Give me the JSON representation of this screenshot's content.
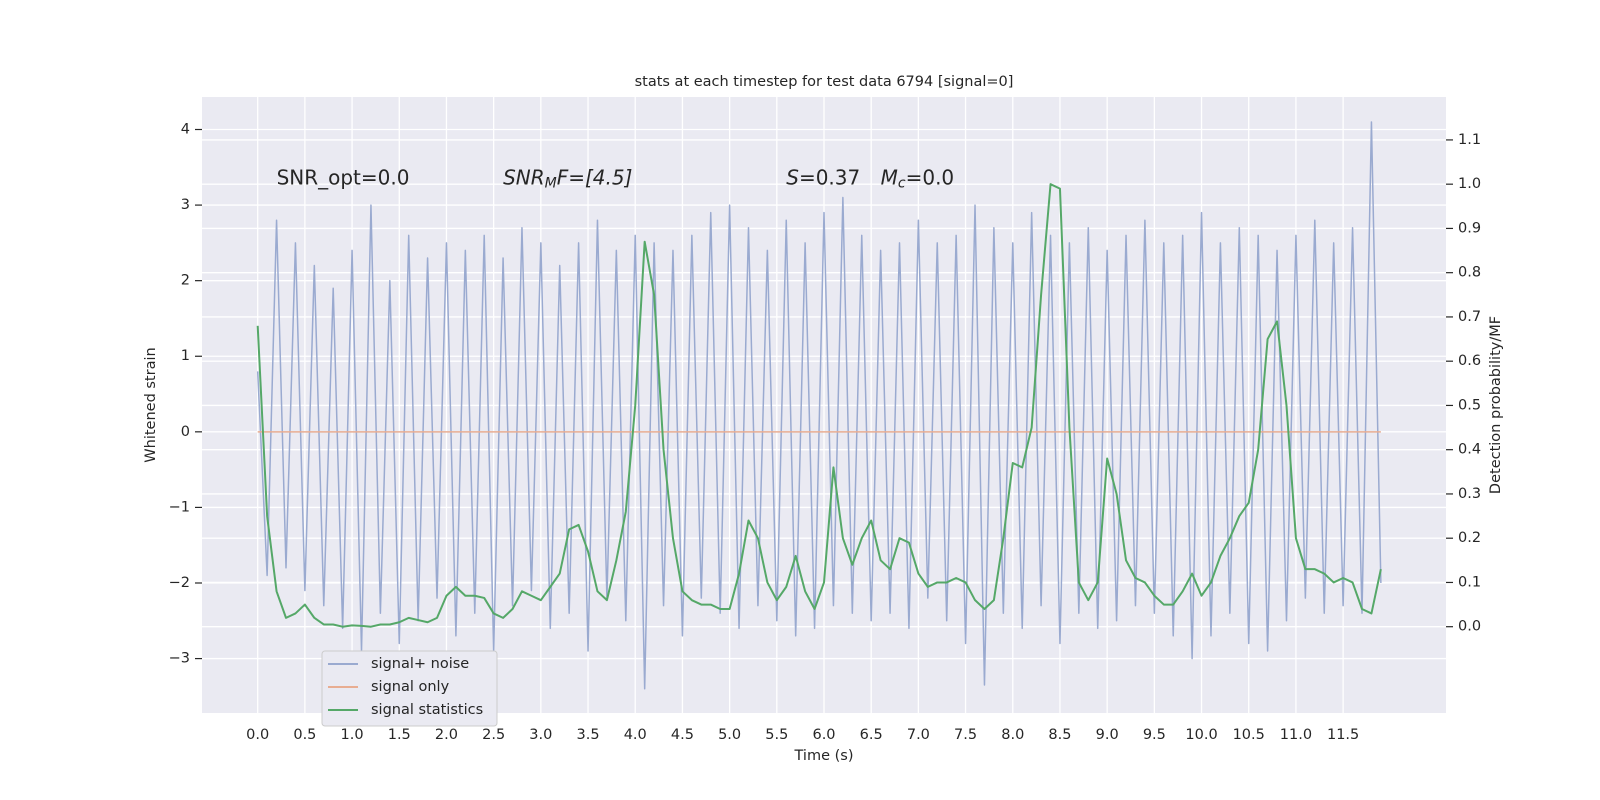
{
  "chart_data": {
    "type": "line",
    "title": "stats at each timestep for test data 6794 [signal=0]",
    "xlabel": "Time (s)",
    "ylabel": "Whitened strain",
    "y2label": "Detection probability/MF",
    "annotations": [
      {
        "x": 0.2,
        "y": 3.35,
        "parts": [
          "SNR_opt=0.0"
        ]
      },
      {
        "x": 2.6,
        "y": 3.35,
        "parts": [
          "SNR",
          "M",
          "F=[4.5]"
        ]
      },
      {
        "x": 5.6,
        "y": 3.35,
        "parts": [
          "S",
          "=0.37"
        ]
      },
      {
        "x": 6.6,
        "y": 3.35,
        "parts": [
          "M",
          "c",
          "=0.0"
        ]
      }
    ],
    "x": [
      0.0,
      0.1,
      0.2,
      0.3,
      0.4,
      0.5,
      0.6,
      0.7,
      0.8,
      0.9,
      1.0,
      1.1,
      1.2,
      1.3,
      1.4,
      1.5,
      1.6,
      1.7,
      1.8,
      1.9,
      2.0,
      2.1,
      2.2,
      2.3,
      2.4,
      2.5,
      2.6,
      2.7,
      2.8,
      2.9,
      3.0,
      3.1,
      3.2,
      3.3,
      3.4,
      3.5,
      3.6,
      3.7,
      3.8,
      3.9,
      4.0,
      4.1,
      4.2,
      4.3,
      4.4,
      4.5,
      4.6,
      4.7,
      4.8,
      4.9,
      5.0,
      5.1,
      5.2,
      5.3,
      5.4,
      5.5,
      5.6,
      5.7,
      5.8,
      5.9,
      6.0,
      6.1,
      6.2,
      6.3,
      6.4,
      6.5,
      6.6,
      6.7,
      6.8,
      6.9,
      7.0,
      7.1,
      7.2,
      7.3,
      7.4,
      7.5,
      7.6,
      7.7,
      7.8,
      7.9,
      8.0,
      8.1,
      8.2,
      8.3,
      8.4,
      8.5,
      8.6,
      8.7,
      8.8,
      8.9,
      9.0,
      9.1,
      9.2,
      9.3,
      9.4,
      9.5,
      9.6,
      9.7,
      9.8,
      9.9,
      10.0,
      10.1,
      10.2,
      10.3,
      10.4,
      10.5,
      10.6,
      10.7,
      10.8,
      10.9,
      11.0,
      11.1,
      11.2,
      11.3,
      11.4,
      11.5,
      11.6,
      11.7,
      11.8,
      11.9
    ],
    "series": [
      {
        "name": "signal+ noise",
        "color": "#9aaad0",
        "values": [
          0.8,
          -1.9,
          2.8,
          -1.8,
          2.5,
          -2.1,
          2.2,
          -2.3,
          1.9,
          -2.6,
          2.4,
          -2.9,
          3.0,
          -2.4,
          2.0,
          -2.8,
          2.6,
          -2.5,
          2.3,
          -2.2,
          2.5,
          -2.7,
          2.4,
          -2.4,
          2.6,
          -2.9,
          2.3,
          -2.3,
          2.7,
          -2.1,
          2.5,
          -2.6,
          2.2,
          -2.4,
          2.5,
          -2.9,
          2.8,
          -2.2,
          2.4,
          -2.5,
          2.6,
          -3.4,
          2.5,
          -2.3,
          2.4,
          -2.7,
          2.6,
          -2.2,
          2.9,
          -2.4,
          3.0,
          -2.6,
          2.7,
          -2.3,
          2.4,
          -2.5,
          2.8,
          -2.7,
          2.5,
          -2.6,
          2.9,
          -2.3,
          3.1,
          -2.4,
          2.6,
          -2.5,
          2.4,
          -2.4,
          2.5,
          -2.6,
          2.8,
          -2.2,
          2.5,
          -2.5,
          2.6,
          -2.8,
          3.0,
          -3.35,
          2.7,
          -2.4,
          2.5,
          -2.6,
          2.9,
          -2.3,
          2.6,
          -2.8,
          2.5,
          -2.4,
          2.7,
          -2.6,
          2.4,
          -2.5,
          2.6,
          -2.3,
          2.8,
          -2.4,
          2.5,
          -2.7,
          2.6,
          -3.0,
          2.9,
          -2.7,
          2.5,
          -2.4,
          2.7,
          -2.8,
          2.6,
          -2.9,
          2.4,
          -2.5,
          2.6,
          -2.2,
          2.8,
          -2.4,
          2.5,
          -2.3,
          2.7,
          -2.4,
          4.1,
          -2.0
        ]
      },
      {
        "name": "signal only",
        "color": "#e8ad92",
        "values": [
          0,
          0,
          0,
          0,
          0,
          0,
          0,
          0,
          0,
          0,
          0,
          0,
          0,
          0,
          0,
          0,
          0,
          0,
          0,
          0,
          0,
          0,
          0,
          0,
          0,
          0,
          0,
          0,
          0,
          0,
          0,
          0,
          0,
          0,
          0,
          0,
          0,
          0,
          0,
          0,
          0,
          0,
          0,
          0,
          0,
          0,
          0,
          0,
          0,
          0,
          0,
          0,
          0,
          0,
          0,
          0,
          0,
          0,
          0,
          0,
          0,
          0,
          0,
          0,
          0,
          0,
          0,
          0,
          0,
          0,
          0,
          0,
          0,
          0,
          0,
          0,
          0,
          0,
          0,
          0,
          0,
          0,
          0,
          0,
          0,
          0,
          0,
          0,
          0,
          0,
          0,
          0,
          0,
          0,
          0,
          0,
          0,
          0,
          0,
          0,
          0,
          0,
          0,
          0,
          0,
          0,
          0,
          0,
          0,
          0,
          0,
          0,
          0,
          0,
          0,
          0,
          0,
          0,
          0,
          0
        ]
      },
      {
        "name": "signal statistics",
        "color": "#55a868",
        "axis": "y2",
        "values": [
          0.68,
          0.25,
          0.08,
          0.02,
          0.03,
          0.05,
          0.02,
          0.005,
          0.005,
          0.0,
          0.003,
          0.002,
          0.0,
          0.005,
          0.005,
          0.01,
          0.02,
          0.015,
          0.01,
          0.02,
          0.07,
          0.09,
          0.07,
          0.07,
          0.065,
          0.03,
          0.02,
          0.04,
          0.08,
          0.07,
          0.06,
          0.09,
          0.12,
          0.22,
          0.23,
          0.17,
          0.08,
          0.06,
          0.15,
          0.26,
          0.5,
          0.87,
          0.75,
          0.4,
          0.2,
          0.08,
          0.06,
          0.05,
          0.05,
          0.04,
          0.04,
          0.12,
          0.24,
          0.2,
          0.1,
          0.06,
          0.09,
          0.16,
          0.08,
          0.04,
          0.1,
          0.36,
          0.2,
          0.14,
          0.2,
          0.24,
          0.15,
          0.13,
          0.2,
          0.19,
          0.12,
          0.09,
          0.1,
          0.1,
          0.11,
          0.1,
          0.06,
          0.04,
          0.06,
          0.2,
          0.37,
          0.36,
          0.45,
          0.75,
          1.0,
          0.99,
          0.45,
          0.1,
          0.06,
          0.1,
          0.38,
          0.3,
          0.15,
          0.11,
          0.1,
          0.07,
          0.05,
          0.05,
          0.08,
          0.12,
          0.07,
          0.1,
          0.16,
          0.2,
          0.25,
          0.28,
          0.4,
          0.65,
          0.69,
          0.5,
          0.2,
          0.13,
          0.13,
          0.12,
          0.1,
          0.11,
          0.1,
          0.04,
          0.03,
          0.13
        ]
      }
    ],
    "xlim": [
      -0.59,
      12.59
    ],
    "xticks": [
      {
        "value": 0,
        "label": "0.0"
      },
      0.5,
      {
        "value": 1,
        "label": "1.0"
      },
      1.5,
      {
        "value": 2,
        "label": "2.0"
      },
      2.5,
      {
        "value": 3,
        "label": "3.0"
      },
      3.5,
      {
        "value": 4,
        "label": "4.0"
      },
      4.5,
      {
        "value": 5,
        "label": "5.0"
      },
      5.5,
      {
        "value": 6,
        "label": "6.0"
      },
      6.5,
      {
        "value": 7,
        "label": "7.0"
      },
      7.5,
      {
        "value": 8,
        "label": "8.0"
      },
      8.5,
      {
        "value": 9,
        "label": "9.0"
      },
      9.5,
      {
        "value": 10,
        "label": "10.0"
      },
      10.5,
      {
        "value": 11,
        "label": "11.0"
      },
      11.5
    ],
    "ylim": [
      -3.72,
      4.43
    ],
    "yticks": [
      {
        "value": -3,
        "label": "−3"
      },
      {
        "value": -2,
        "label": "−2"
      },
      {
        "value": -1,
        "label": "−1"
      },
      0,
      1,
      2,
      3,
      4
    ],
    "y2lim": [
      -0.195,
      1.197
    ],
    "y2ticks": [
      {
        "value": 0,
        "label": "0.0"
      },
      0.1,
      0.2,
      0.3,
      0.4,
      0.5,
      0.6,
      0.7,
      0.8,
      0.9,
      {
        "value": 1,
        "label": "1.0"
      },
      1.1
    ],
    "grid": true,
    "legend": "lower left"
  }
}
